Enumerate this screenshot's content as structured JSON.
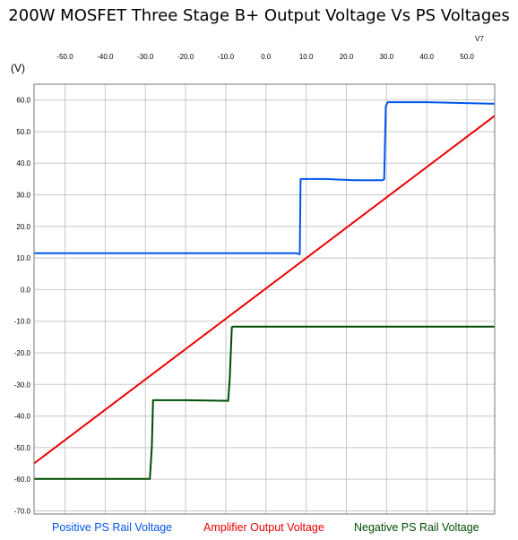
{
  "chart_data": {
    "type": "line",
    "title": "200W MOSFET Three Stage B+ Output Voltage Vs PS Voltages",
    "corner_label": "V7",
    "ylabel": "(V)",
    "xlabel": "",
    "xlim": [
      -57.7,
      56.9
    ],
    "ylim": [
      -71.0,
      65.0
    ],
    "x_ticks": [
      "-50.0",
      "-40.0",
      "-30.0",
      "-20.0",
      "-10.0",
      "0.0",
      "10.0",
      "20.0",
      "30.0",
      "40.0",
      "50.0"
    ],
    "x_tick_values": [
      -50,
      -40,
      -30,
      -20,
      -10,
      0,
      10,
      20,
      30,
      40,
      50
    ],
    "y_ticks": [
      "60.0",
      "50.0",
      "40.0",
      "30.0",
      "20.0",
      "10.0",
      "0.0",
      "-10.0",
      "-20.0",
      "-30.0",
      "-40.0",
      "-50.0",
      "-60.0",
      "-70.0"
    ],
    "y_tick_values": [
      60,
      50,
      40,
      30,
      20,
      10,
      0,
      -10,
      -20,
      -30,
      -40,
      -50,
      -60,
      -70
    ],
    "grid": true,
    "legend_position": "bottom",
    "series": [
      {
        "name": "Positive PS Rail Voltage",
        "color": "#0055ee",
        "x": [
          -57.7,
          7.6,
          8.4,
          8.6,
          15.0,
          22.0,
          29.0,
          29.4,
          29.8,
          30.3,
          40.0,
          56.9
        ],
        "y": [
          11.5,
          11.5,
          11.2,
          35.0,
          35.0,
          34.6,
          34.6,
          35.0,
          58.0,
          59.3,
          59.3,
          58.8
        ]
      },
      {
        "name": "Amplifier Output Voltage",
        "color": "#ee0000",
        "x": [
          -57.7,
          56.9
        ],
        "y": [
          -55.0,
          55.0
        ]
      },
      {
        "name": "Negative PS Rail Voltage",
        "color": "#004d00",
        "x": [
          -57.7,
          -28.9,
          -28.4,
          -28.1,
          -20.0,
          -9.4,
          -9.0,
          -8.5,
          -8.2,
          56.9
        ],
        "y": [
          -59.9,
          -59.9,
          -50.0,
          -35.0,
          -35.0,
          -35.2,
          -28.0,
          -11.9,
          -11.7,
          -11.7
        ]
      }
    ]
  }
}
